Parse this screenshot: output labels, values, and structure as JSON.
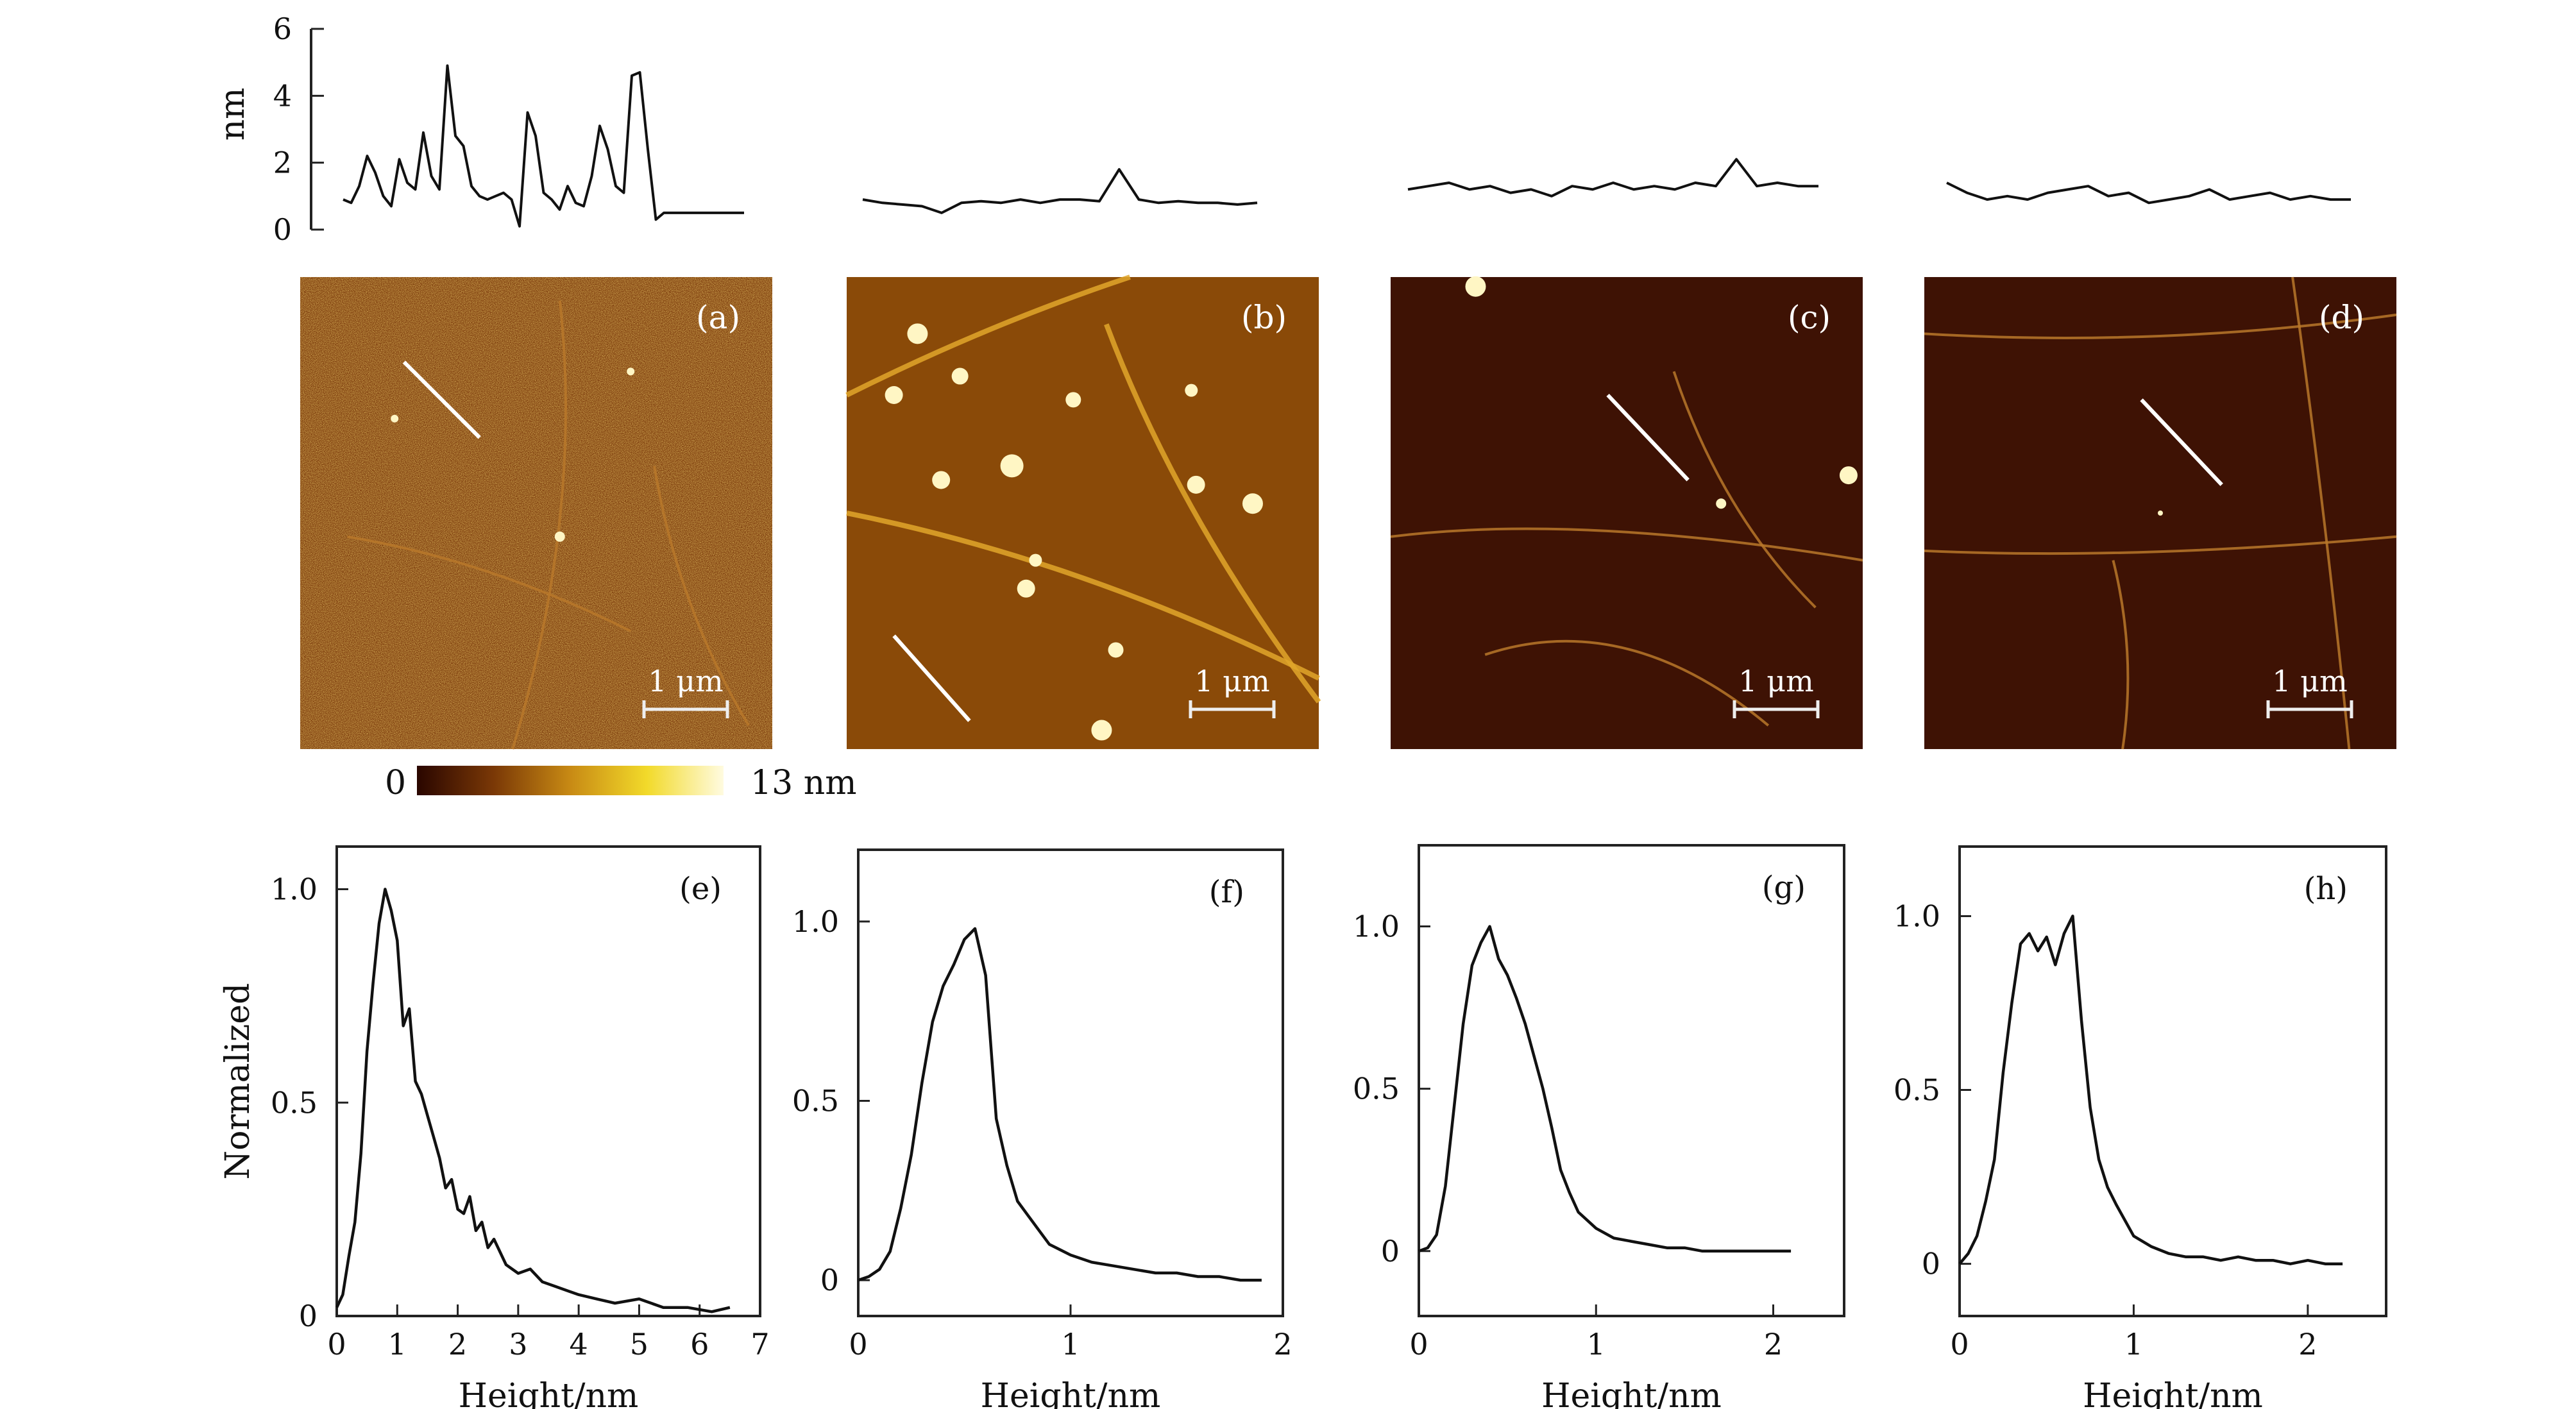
{
  "chart_data": [
    {
      "type": "line",
      "panel": "profile-a",
      "ylabel": "nm",
      "ylim": [
        0,
        6
      ],
      "yticks": [
        "0",
        "2",
        "4",
        "6"
      ],
      "x": [
        0,
        0.02,
        0.04,
        0.06,
        0.08,
        0.1,
        0.12,
        0.14,
        0.16,
        0.18,
        0.2,
        0.22,
        0.24,
        0.26,
        0.28,
        0.3,
        0.32,
        0.34,
        0.36,
        0.38,
        0.4,
        0.42,
        0.44,
        0.46,
        0.48,
        0.5,
        0.52,
        0.54,
        0.56,
        0.58,
        0.6,
        0.62,
        0.64,
        0.66,
        0.68,
        0.7,
        0.72,
        0.74,
        0.76,
        0.78,
        0.8,
        0.82,
        0.84,
        0.86,
        0.88,
        0.9,
        0.92,
        0.94,
        0.96,
        0.98,
        1.0
      ],
      "values": [
        0.9,
        0.8,
        1.3,
        2.2,
        1.7,
        1.0,
        0.7,
        2.1,
        1.4,
        1.2,
        2.9,
        1.6,
        1.2,
        4.9,
        2.8,
        2.5,
        1.3,
        1.0,
        0.9,
        1.0,
        1.1,
        0.9,
        0.1,
        3.5,
        2.8,
        1.1,
        0.9,
        0.6,
        1.3,
        0.8,
        0.7,
        1.6,
        3.1,
        2.4,
        1.3,
        1.1,
        4.6,
        4.7,
        2.4,
        0.3,
        0.5,
        0.5,
        0.5,
        0.5,
        0.5,
        0.5,
        0.5,
        0.5,
        0.5,
        0.5,
        0.5
      ]
    },
    {
      "type": "line",
      "panel": "profile-b",
      "ylim": [
        0,
        6
      ],
      "x": [
        0,
        0.05,
        0.1,
        0.15,
        0.2,
        0.25,
        0.3,
        0.35,
        0.4,
        0.45,
        0.5,
        0.55,
        0.6,
        0.65,
        0.7,
        0.75,
        0.8,
        0.85,
        0.9,
        0.95,
        1.0
      ],
      "values": [
        0.9,
        0.8,
        0.75,
        0.7,
        0.5,
        0.8,
        0.85,
        0.8,
        0.9,
        0.8,
        0.9,
        0.9,
        0.85,
        1.8,
        0.9,
        0.8,
        0.85,
        0.8,
        0.8,
        0.75,
        0.8
      ]
    },
    {
      "type": "line",
      "panel": "profile-c",
      "ylim": [
        0,
        6
      ],
      "x": [
        0,
        0.05,
        0.1,
        0.15,
        0.2,
        0.25,
        0.3,
        0.35,
        0.4,
        0.45,
        0.5,
        0.55,
        0.6,
        0.65,
        0.7,
        0.75,
        0.8,
        0.85,
        0.9,
        0.95,
        1.0
      ],
      "values": [
        1.2,
        1.3,
        1.4,
        1.2,
        1.3,
        1.1,
        1.2,
        1.0,
        1.3,
        1.2,
        1.4,
        1.2,
        1.3,
        1.2,
        1.4,
        1.3,
        2.1,
        1.3,
        1.4,
        1.3,
        1.3
      ]
    },
    {
      "type": "line",
      "panel": "profile-d",
      "ylim": [
        0,
        6
      ],
      "x": [
        0,
        0.05,
        0.1,
        0.15,
        0.2,
        0.25,
        0.3,
        0.35,
        0.4,
        0.45,
        0.5,
        0.55,
        0.6,
        0.65,
        0.7,
        0.75,
        0.8,
        0.85,
        0.9,
        0.95,
        1.0
      ],
      "values": [
        1.4,
        1.1,
        0.9,
        1.0,
        0.9,
        1.1,
        1.2,
        1.3,
        1.0,
        1.1,
        0.8,
        0.9,
        1.0,
        1.2,
        0.9,
        1.0,
        1.1,
        0.9,
        1.0,
        0.9,
        0.9
      ]
    },
    {
      "type": "line",
      "panel": "e",
      "xlabel": "Height/nm",
      "ylabel": "Normalized",
      "xlim": [
        0,
        7
      ],
      "ylim": [
        0,
        1.1
      ],
      "xticks": [
        "0",
        "1",
        "2",
        "3",
        "4",
        "5",
        "6",
        "7"
      ],
      "yticks": [
        "0",
        "0.5",
        "1.0"
      ],
      "x": [
        0,
        0.1,
        0.2,
        0.3,
        0.4,
        0.5,
        0.6,
        0.7,
        0.8,
        0.9,
        1.0,
        1.1,
        1.2,
        1.3,
        1.4,
        1.5,
        1.6,
        1.7,
        1.8,
        1.9,
        2.0,
        2.1,
        2.2,
        2.3,
        2.4,
        2.5,
        2.6,
        2.8,
        3.0,
        3.2,
        3.4,
        3.6,
        3.8,
        4.0,
        4.3,
        4.6,
        5.0,
        5.4,
        5.8,
        6.2,
        6.5
      ],
      "values": [
        0.02,
        0.05,
        0.14,
        0.22,
        0.38,
        0.62,
        0.78,
        0.92,
        1.0,
        0.95,
        0.88,
        0.68,
        0.72,
        0.55,
        0.52,
        0.47,
        0.42,
        0.37,
        0.3,
        0.32,
        0.25,
        0.24,
        0.28,
        0.2,
        0.22,
        0.16,
        0.18,
        0.12,
        0.1,
        0.11,
        0.08,
        0.07,
        0.06,
        0.05,
        0.04,
        0.03,
        0.04,
        0.02,
        0.02,
        0.01,
        0.02
      ]
    },
    {
      "type": "line",
      "panel": "f",
      "xlabel": "Height/nm",
      "xlim": [
        0,
        2
      ],
      "ylim": [
        -0.1,
        1.2
      ],
      "xticks": [
        "0",
        "1",
        "2"
      ],
      "yticks": [
        "0",
        "0.5",
        "1.0"
      ],
      "x": [
        0,
        0.05,
        0.1,
        0.15,
        0.2,
        0.25,
        0.3,
        0.35,
        0.4,
        0.45,
        0.5,
        0.55,
        0.6,
        0.65,
        0.7,
        0.75,
        0.8,
        0.85,
        0.9,
        1.0,
        1.1,
        1.2,
        1.3,
        1.4,
        1.5,
        1.6,
        1.7,
        1.8,
        1.9
      ],
      "values": [
        0.0,
        0.01,
        0.03,
        0.08,
        0.2,
        0.35,
        0.55,
        0.72,
        0.82,
        0.88,
        0.95,
        0.98,
        0.85,
        0.45,
        0.32,
        0.22,
        0.18,
        0.14,
        0.1,
        0.07,
        0.05,
        0.04,
        0.03,
        0.02,
        0.02,
        0.01,
        0.01,
        0.0,
        0.0
      ]
    },
    {
      "type": "line",
      "panel": "g",
      "xlabel": "Height/nm",
      "xlim": [
        0,
        2.4
      ],
      "ylim": [
        -0.2,
        1.25
      ],
      "xticks": [
        "0",
        "1",
        "2"
      ],
      "yticks": [
        "0",
        "0.5",
        "1.0"
      ],
      "x": [
        0,
        0.05,
        0.1,
        0.15,
        0.2,
        0.25,
        0.3,
        0.35,
        0.4,
        0.45,
        0.5,
        0.55,
        0.6,
        0.65,
        0.7,
        0.75,
        0.8,
        0.85,
        0.9,
        1.0,
        1.1,
        1.2,
        1.3,
        1.4,
        1.5,
        1.6,
        1.7,
        1.8,
        1.9,
        2.0,
        2.1
      ],
      "values": [
        0.0,
        0.01,
        0.05,
        0.2,
        0.45,
        0.7,
        0.88,
        0.95,
        1.0,
        0.9,
        0.85,
        0.78,
        0.7,
        0.6,
        0.5,
        0.38,
        0.25,
        0.18,
        0.12,
        0.07,
        0.04,
        0.03,
        0.02,
        0.01,
        0.01,
        0.0,
        0.0,
        0.0,
        0.0,
        0.0,
        0.0
      ]
    },
    {
      "type": "line",
      "panel": "h",
      "xlabel": "Height/nm",
      "xlim": [
        0,
        2.45
      ],
      "ylim": [
        -0.15,
        1.2
      ],
      "xticks": [
        "0",
        "1",
        "2"
      ],
      "yticks": [
        "0",
        "0.5",
        "1.0"
      ],
      "x": [
        0,
        0.05,
        0.1,
        0.15,
        0.2,
        0.25,
        0.3,
        0.35,
        0.4,
        0.45,
        0.5,
        0.55,
        0.6,
        0.65,
        0.7,
        0.75,
        0.8,
        0.85,
        0.9,
        1.0,
        1.1,
        1.2,
        1.3,
        1.4,
        1.5,
        1.6,
        1.7,
        1.8,
        1.9,
        2.0,
        2.1,
        2.2
      ],
      "values": [
        0.0,
        0.03,
        0.08,
        0.18,
        0.3,
        0.55,
        0.75,
        0.92,
        0.95,
        0.9,
        0.94,
        0.86,
        0.95,
        1.0,
        0.7,
        0.45,
        0.3,
        0.22,
        0.17,
        0.08,
        0.05,
        0.03,
        0.02,
        0.02,
        0.01,
        0.02,
        0.01,
        0.01,
        0.0,
        0.01,
        0.0,
        0.0
      ]
    }
  ],
  "images": [
    {
      "label": "(a)",
      "scalebar": "1 μm"
    },
    {
      "label": "(b)",
      "scalebar": "1 μm"
    },
    {
      "label": "(c)",
      "scalebar": "1 μm"
    },
    {
      "label": "(d)",
      "scalebar": "1 μm"
    }
  ],
  "hist_labels": [
    "(e)",
    "(f)",
    "(g)",
    "(h)"
  ],
  "colorbar": {
    "min": "0",
    "max": "13 nm",
    "colors": [
      "#2a0600",
      "#7a3806",
      "#c88a14",
      "#f2da2a",
      "#fffbe0"
    ]
  },
  "colors": {
    "line": "#111111",
    "afm_dark": "#3e1204",
    "afm_mid": "#7a380a"
  }
}
